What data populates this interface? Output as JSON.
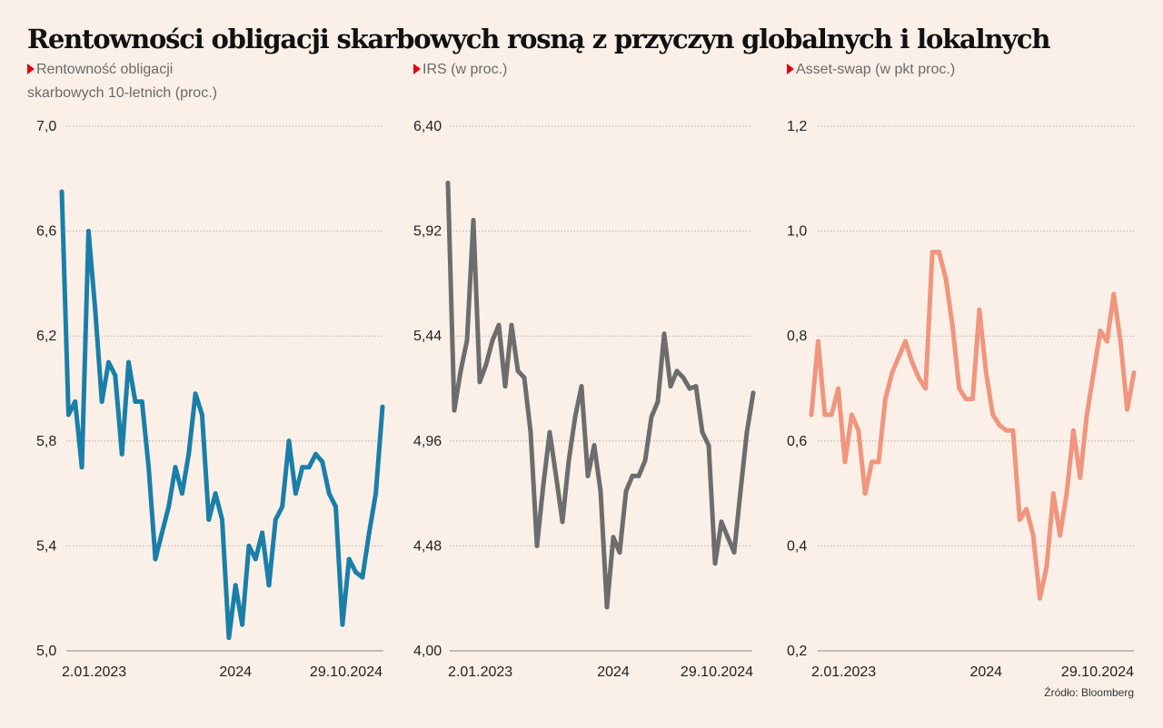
{
  "title": "Rentowności obligacji skarbowych rosną z przyczyn globalnych i lokalnych",
  "source": "Źródło: Bloomberg",
  "chart_data": [
    {
      "type": "line",
      "title_line1": "Rentowność obligacji",
      "title_line2": "skarbowych 10-letnich (proc.)",
      "color": "#1a7fa8",
      "ylim": [
        5.0,
        7.0
      ],
      "yticks": [
        "7,0",
        "6,6",
        "6,2",
        "5,8",
        "5,4",
        "5,0"
      ],
      "ytick_values": [
        7.0,
        6.6,
        6.2,
        5.8,
        5.4,
        5.0
      ],
      "xtick_labels": [
        "2.01.2023",
        "2024",
        "29.10.2024"
      ],
      "grid": true,
      "values": [
        6.75,
        5.9,
        5.95,
        5.7,
        6.6,
        6.3,
        5.95,
        6.1,
        6.05,
        5.75,
        6.1,
        5.95,
        5.95,
        5.7,
        5.35,
        5.45,
        5.55,
        5.7,
        5.6,
        5.75,
        5.98,
        5.9,
        5.5,
        5.6,
        5.5,
        5.05,
        5.25,
        5.1,
        5.4,
        5.35,
        5.45,
        5.25,
        5.5,
        5.55,
        5.8,
        5.6,
        5.7,
        5.7,
        5.75,
        5.72,
        5.6,
        5.55,
        5.1,
        5.35,
        5.3,
        5.28,
        5.45,
        5.6,
        5.93
      ]
    },
    {
      "type": "line",
      "title_line1": "IRS (w proc.)",
      "color": "#6d6d6d",
      "ylim": [
        4.0,
        6.4
      ],
      "yticks": [
        "6,40",
        "5,92",
        "5,44",
        "4,96",
        "4,48",
        "4,00"
      ],
      "ytick_values": [
        6.4,
        5.92,
        5.44,
        4.96,
        4.48,
        4.0
      ],
      "xtick_labels": [
        "2.01.2023",
        "2024",
        "29.10.2024"
      ],
      "grid": true,
      "values": [
        6.14,
        5.1,
        5.28,
        5.42,
        5.97,
        5.23,
        5.31,
        5.42,
        5.49,
        5.21,
        5.49,
        5.28,
        5.25,
        5.0,
        4.48,
        4.76,
        5.0,
        4.8,
        4.59,
        4.87,
        5.07,
        5.21,
        4.8,
        4.94,
        4.73,
        4.2,
        4.52,
        4.45,
        4.73,
        4.8,
        4.8,
        4.87,
        5.07,
        5.14,
        5.45,
        5.21,
        5.28,
        5.25,
        5.2,
        5.21,
        5.0,
        4.94,
        4.4,
        4.59,
        4.52,
        4.45,
        4.73,
        5.0,
        5.18
      ]
    },
    {
      "type": "line",
      "title_line1": "Asset-swap (w pkt proc.)",
      "color": "#f0957e",
      "ylim": [
        0.2,
        1.2
      ],
      "yticks": [
        "1,2",
        "1,0",
        "0,8",
        "0,6",
        "0,4",
        "0,2"
      ],
      "ytick_values": [
        1.2,
        1.0,
        0.8,
        0.6,
        0.4,
        0.2
      ],
      "xtick_labels": [
        "2.01.2023",
        "2024",
        "29.10.2024"
      ],
      "grid": true,
      "values": [
        0.65,
        0.79,
        0.65,
        0.65,
        0.7,
        0.56,
        0.65,
        0.62,
        0.5,
        0.56,
        0.56,
        0.68,
        0.73,
        0.76,
        0.79,
        0.75,
        0.72,
        0.7,
        0.96,
        0.96,
        0.91,
        0.82,
        0.7,
        0.68,
        0.68,
        0.85,
        0.73,
        0.65,
        0.63,
        0.62,
        0.62,
        0.45,
        0.47,
        0.42,
        0.3,
        0.36,
        0.5,
        0.42,
        0.5,
        0.62,
        0.53,
        0.65,
        0.73,
        0.81,
        0.79,
        0.88,
        0.79,
        0.66,
        0.73
      ]
    }
  ],
  "dates": [
    "2023-01-02",
    "2023-01-16",
    "2023-01-30",
    "2023-02-13",
    "2023-02-27",
    "2023-03-13",
    "2023-03-27",
    "2023-04-10",
    "2023-04-24",
    "2023-05-08",
    "2023-05-22",
    "2023-06-05",
    "2023-06-19",
    "2023-07-03",
    "2023-07-17",
    "2023-07-31",
    "2023-08-14",
    "2023-08-28",
    "2023-09-11",
    "2023-09-25",
    "2023-10-09",
    "2023-10-23",
    "2023-11-06",
    "2023-11-20",
    "2023-12-04",
    "2023-12-18",
    "2024-01-01",
    "2024-01-15",
    "2024-01-29",
    "2024-02-12",
    "2024-02-26",
    "2024-03-11",
    "2024-03-25",
    "2024-04-08",
    "2024-04-22",
    "2024-05-06",
    "2024-05-20",
    "2024-06-03",
    "2024-06-17",
    "2024-07-01",
    "2024-07-15",
    "2024-07-29",
    "2024-08-12",
    "2024-08-26",
    "2024-09-09",
    "2024-09-23",
    "2024-10-07",
    "2024-10-21",
    "2024-11-04"
  ]
}
